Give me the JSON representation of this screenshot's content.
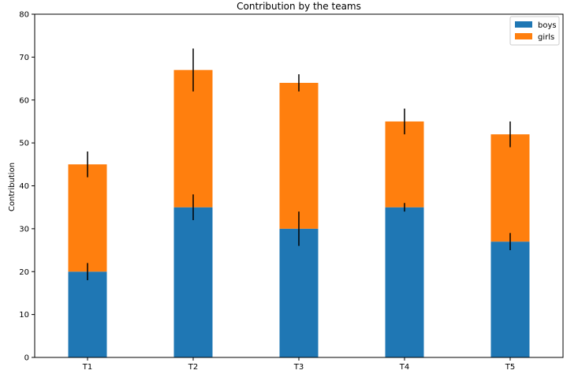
{
  "chart_data": {
    "type": "bar",
    "stacked": true,
    "title": "Contribution by the teams",
    "xlabel": "",
    "ylabel": "Contribution",
    "categories": [
      "T1",
      "T2",
      "T3",
      "T4",
      "T5"
    ],
    "ylim": [
      0,
      80
    ],
    "yticks": [
      "0",
      "10",
      "20",
      "30",
      "40",
      "50",
      "60",
      "70",
      "80"
    ],
    "grid": false,
    "legend_position": "top-right",
    "series": [
      {
        "name": "boys",
        "color": "#1f77b4",
        "values": [
          20,
          35,
          30,
          35,
          27
        ],
        "errors": [
          2,
          3,
          4,
          1,
          2
        ]
      },
      {
        "name": "girls",
        "color": "#ff7f0e",
        "values": [
          25,
          32,
          34,
          20,
          25
        ],
        "errors": [
          3,
          5,
          2,
          3,
          3
        ]
      }
    ]
  }
}
